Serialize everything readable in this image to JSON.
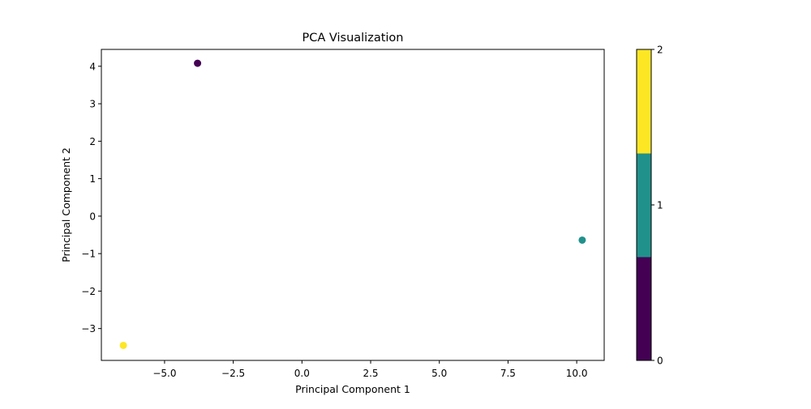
{
  "chart_data": {
    "type": "scatter",
    "title": "PCA Visualization",
    "xlabel": "Principal Component 1",
    "ylabel": "Principal Component 2",
    "xlim": [
      -7.3,
      11.0
    ],
    "ylim": [
      -3.85,
      4.45
    ],
    "grid": false,
    "xticks": [
      -5.0,
      -2.5,
      0.0,
      2.5,
      5.0,
      7.5,
      10.0
    ],
    "xtick_labels": [
      "−5.0",
      "−2.5",
      "0.0",
      "2.5",
      "5.0",
      "7.5",
      "10.0"
    ],
    "yticks": [
      -3,
      -2,
      -1,
      0,
      1,
      2,
      3,
      4
    ],
    "ytick_labels": [
      "−3",
      "−2",
      "−1",
      "0",
      "1",
      "2",
      "3",
      "4"
    ],
    "points": [
      {
        "x": -3.8,
        "y": 4.08,
        "cluster": 0
      },
      {
        "x": 10.2,
        "y": -0.64,
        "cluster": 1
      },
      {
        "x": -6.5,
        "y": -3.45,
        "cluster": 2
      }
    ],
    "colorbar": {
      "range": [
        0,
        2
      ],
      "ticks": [
        0,
        1,
        2
      ],
      "tick_labels": [
        "0",
        "1",
        "2"
      ],
      "colors": [
        "#440154",
        "#21918c",
        "#fde725"
      ]
    }
  }
}
